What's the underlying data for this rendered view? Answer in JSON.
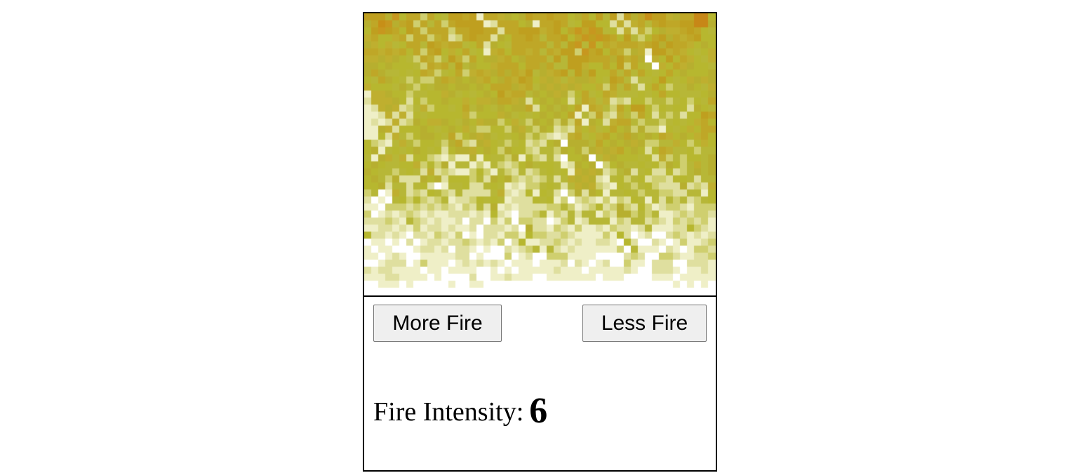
{
  "fire": {
    "grid_cols": 50,
    "grid_rows": 40,
    "seed": 7,
    "palette": [
      "#080808",
      "#1f0707",
      "#2f0f07",
      "#470f07",
      "#571707",
      "#671f07",
      "#771f07",
      "#8f2707",
      "#9f2f07",
      "#af3f07",
      "#bf4707",
      "#c74707",
      "#df4f07",
      "#df5707",
      "#df5707",
      "#d75f07",
      "#d7670f",
      "#cf6f0f",
      "#cf770f",
      "#cf7f0f",
      "#cf8717",
      "#c78717",
      "#c78f17",
      "#c7971f",
      "#bf9f1f",
      "#bf9f1f",
      "#bfa727",
      "#bfa727",
      "#bfaf2f",
      "#b7af2f",
      "#b7b72f",
      "#b7b737",
      "#cfcf6f",
      "#dfdf9f",
      "#efefc7",
      "#ffffff"
    ]
  },
  "controls": {
    "more_label": "More Fire",
    "less_label": "Less Fire"
  },
  "status": {
    "label": "Fire Intensity:",
    "value": "6"
  }
}
